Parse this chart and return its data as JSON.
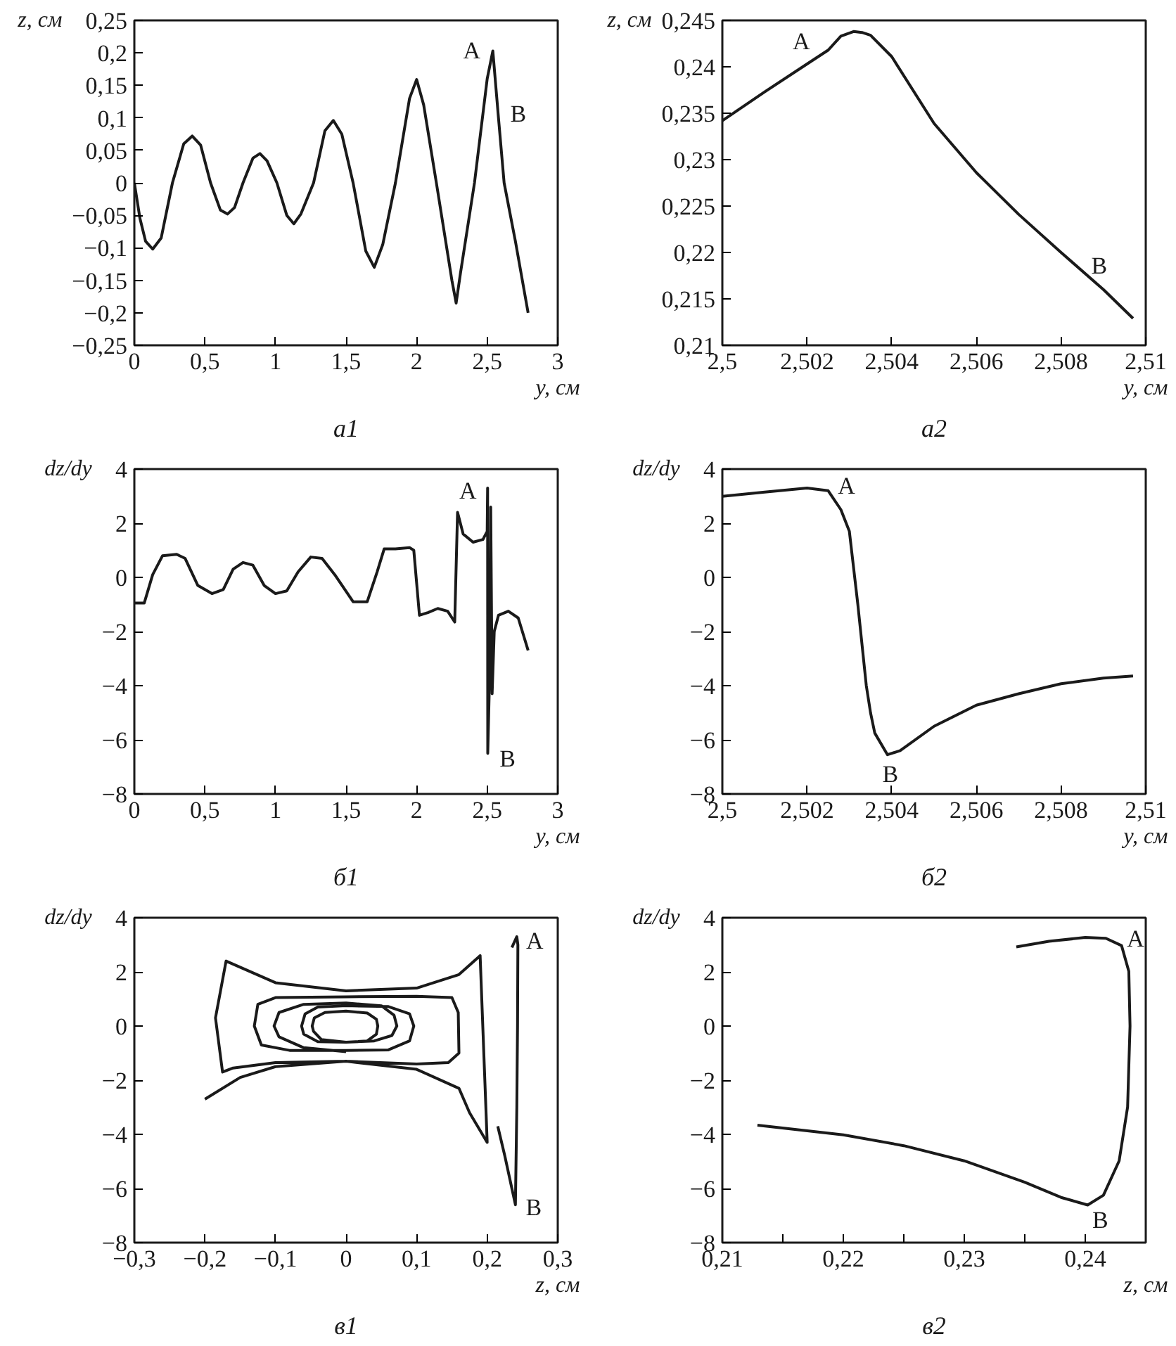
{
  "chart_data": [
    {
      "type": "line",
      "title": "а1",
      "xlabel": "y, см",
      "ylabel": "z, см",
      "xlim": [
        0,
        3
      ],
      "ylim": [
        -0.25,
        0.25
      ],
      "xticks": [
        0,
        {
          "value": 0.5,
          "label": "0,5"
        },
        1,
        {
          "value": 1.5,
          "label": "1,5"
        },
        2,
        {
          "value": 2.5,
          "label": "2,5"
        },
        3
      ],
      "yticks": [
        {
          "value": -0.25,
          "label": "−0,25"
        },
        {
          "value": -0.2,
          "label": "−0,2"
        },
        {
          "value": -0.15,
          "label": "−0,15"
        },
        {
          "value": -0.1,
          "label": "−0,1"
        },
        {
          "value": -0.05,
          "label": "−0,05"
        },
        0,
        {
          "value": 0.05,
          "label": "0,05"
        },
        {
          "value": 0.1,
          "label": "0,1"
        },
        {
          "value": 0.15,
          "label": "0,15"
        },
        {
          "value": 0.2,
          "label": "0,2"
        },
        {
          "value": 0.25,
          "label": "0,25"
        }
      ],
      "series": [
        {
          "color": "#1a1a1a",
          "x": [
            0,
            0.04,
            0.08,
            0.13,
            0.19,
            0.27,
            0.35,
            0.41,
            0.47,
            0.54,
            0.61,
            0.66,
            0.71,
            0.77,
            0.84,
            0.89,
            0.94,
            1.01,
            1.08,
            1.13,
            1.18,
            1.27,
            1.35,
            1.41,
            1.47,
            1.55,
            1.64,
            1.7,
            1.76,
            1.85,
            1.95,
            2.0,
            2.05,
            2.14,
            2.25,
            2.28,
            2.31,
            2.41,
            2.5,
            2.54,
            2.58,
            2.62,
            2.7,
            2.79
          ],
          "values": [
            0,
            -0.055,
            -0.09,
            -0.102,
            -0.085,
            0,
            0.06,
            0.072,
            0.058,
            0,
            -0.042,
            -0.048,
            -0.038,
            0,
            0.038,
            0.045,
            0.034,
            0,
            -0.05,
            -0.063,
            -0.048,
            0,
            0.08,
            0.096,
            0.075,
            0,
            -0.105,
            -0.13,
            -0.095,
            0,
            0.13,
            0.159,
            0.12,
            0,
            -0.15,
            -0.185,
            -0.14,
            0,
            0.16,
            0.203,
            0.1,
            0,
            -0.09,
            -0.2
          ]
        }
      ],
      "annotations": [
        {
          "text": "A",
          "x": 2.54,
          "y": 0.203
        },
        {
          "text": "B",
          "x": 2.58,
          "y": 0.1
        }
      ]
    },
    {
      "type": "line",
      "title": "а2",
      "xlabel": "y, см",
      "ylabel": "z, см",
      "xlim": [
        2.5,
        2.51
      ],
      "ylim": [
        0.21,
        0.245
      ],
      "xticks": [
        {
          "value": 2.5,
          "label": "2,5"
        },
        {
          "value": 2.502,
          "label": "2,502"
        },
        {
          "value": 2.504,
          "label": "2,504"
        },
        {
          "value": 2.506,
          "label": "2,506"
        },
        {
          "value": 2.508,
          "label": "2,508"
        },
        {
          "value": 2.51,
          "label": "2,51"
        }
      ],
      "yticks": [
        {
          "value": 0.21,
          "label": "0,21"
        },
        {
          "value": 0.215,
          "label": "0,215"
        },
        {
          "value": 0.22,
          "label": "0,22"
        },
        {
          "value": 0.225,
          "label": "0,225"
        },
        {
          "value": 0.23,
          "label": "0,23"
        },
        {
          "value": 0.235,
          "label": "0,235"
        },
        {
          "value": 0.24,
          "label": "0,24"
        },
        {
          "value": 0.245,
          "label": "0,245"
        }
      ],
      "series": [
        {
          "color": "#1a1a1a",
          "x": [
            2.5,
            2.501,
            2.502,
            2.5025,
            2.5028,
            2.5031,
            2.5033,
            2.5035,
            2.504,
            2.505,
            2.506,
            2.507,
            2.508,
            2.509,
            2.5097
          ],
          "values": [
            0.2342,
            0.2373,
            0.2403,
            0.2418,
            0.2433,
            0.2438,
            0.2437,
            0.2434,
            0.2411,
            0.2339,
            0.2286,
            0.2241,
            0.22,
            0.216,
            0.2129
          ]
        }
      ],
      "annotations": [
        {
          "text": "A",
          "x": 2.502,
          "y": 0.2403
        },
        {
          "text": "B",
          "x": 2.509,
          "y": 0.216
        }
      ]
    },
    {
      "type": "line",
      "title": "б1",
      "xlabel": "y, см",
      "ylabel": "dz/dy",
      "xlim": [
        0,
        3
      ],
      "ylim": [
        -8,
        4
      ],
      "xticks": [
        0,
        {
          "value": 0.5,
          "label": "0,5"
        },
        1,
        {
          "value": 1.5,
          "label": "1,5"
        },
        2,
        {
          "value": 2.5,
          "label": "2,5"
        },
        3
      ],
      "yticks": [
        {
          "value": -8,
          "label": "−8"
        },
        {
          "value": -6,
          "label": "−6"
        },
        {
          "value": -4,
          "label": "−4"
        },
        {
          "value": -2,
          "label": "−2"
        },
        0,
        2,
        4
      ],
      "series": [
        {
          "color": "#1a1a1a",
          "x": [
            0,
            0.07,
            0.13,
            0.2,
            0.3,
            0.36,
            0.45,
            0.55,
            0.63,
            0.7,
            0.77,
            0.84,
            0.92,
            1.0,
            1.08,
            1.16,
            1.25,
            1.33,
            1.42,
            1.55,
            1.65,
            1.72,
            1.77,
            1.85,
            1.95,
            1.98,
            2.02,
            2.08,
            2.15,
            2.22,
            2.27,
            2.29,
            2.33,
            2.4,
            2.47,
            2.5,
            2.503,
            2.504,
            2.52,
            2.525,
            2.535,
            2.55,
            2.58,
            2.65,
            2.72,
            2.79
          ],
          "values": [
            -0.95,
            -0.95,
            0.1,
            0.8,
            0.85,
            0.7,
            -0.3,
            -0.6,
            -0.45,
            0.3,
            0.55,
            0.45,
            -0.3,
            -0.6,
            -0.5,
            0.2,
            0.75,
            0.7,
            0.1,
            -0.9,
            -0.9,
            0.2,
            1.05,
            1.05,
            1.1,
            1.0,
            -1.4,
            -1.3,
            -1.15,
            -1.25,
            -1.65,
            2.4,
            1.6,
            1.3,
            1.4,
            1.7,
            3.3,
            -6.5,
            -3.0,
            2.6,
            -4.3,
            -2.0,
            -1.4,
            -1.25,
            -1.5,
            -2.7
          ]
        }
      ],
      "annotations": [
        {
          "text": "A",
          "x": 2.503,
          "y": 3.3
        },
        {
          "text": "B",
          "x": 2.504,
          "y": -6.5
        }
      ]
    },
    {
      "type": "line",
      "title": "б2",
      "xlabel": "y, см",
      "ylabel": "dz/dy",
      "xlim": [
        2.5,
        2.51
      ],
      "ylim": [
        -8,
        4
      ],
      "xticks": [
        {
          "value": 2.5,
          "label": "2,5"
        },
        {
          "value": 2.502,
          "label": "2,502"
        },
        {
          "value": 2.504,
          "label": "2,504"
        },
        {
          "value": 2.506,
          "label": "2,506"
        },
        {
          "value": 2.508,
          "label": "2,508"
        },
        {
          "value": 2.51,
          "label": "2,51"
        }
      ],
      "yticks": [
        {
          "value": -8,
          "label": "−8"
        },
        {
          "value": -6,
          "label": "−6"
        },
        {
          "value": -4,
          "label": "−4"
        },
        {
          "value": -2,
          "label": "−2"
        },
        0,
        2,
        4
      ],
      "series": [
        {
          "color": "#1a1a1a",
          "x": [
            2.5,
            2.501,
            2.502,
            2.5025,
            2.5028,
            2.503,
            2.5032,
            2.5034,
            2.5035,
            2.5036,
            2.5039,
            2.5042,
            2.505,
            2.506,
            2.507,
            2.508,
            2.509,
            2.5097
          ],
          "values": [
            2.99,
            3.15,
            3.3,
            3.2,
            2.5,
            1.7,
            -1.0,
            -4.0,
            -5.0,
            -5.75,
            -6.55,
            -6.4,
            -5.5,
            -4.72,
            -4.3,
            -3.93,
            -3.72,
            -3.64
          ]
        }
      ],
      "annotations": [
        {
          "text": "A",
          "x": 2.5028,
          "y": 2.5
        },
        {
          "text": "B",
          "x": 2.5039,
          "y": -6.55
        }
      ]
    },
    {
      "type": "line",
      "title": "в1",
      "xlabel": "z, см",
      "ylabel": "dz/dy",
      "xlim": [
        -0.3,
        0.3
      ],
      "ylim": [
        -8,
        4
      ],
      "xticks": [
        {
          "value": -0.3,
          "label": "−0,3"
        },
        {
          "value": -0.2,
          "label": "−0,2"
        },
        {
          "value": -0.1,
          "label": "−0,1"
        },
        0,
        {
          "value": 0.1,
          "label": "0,1"
        },
        {
          "value": 0.2,
          "label": "0,2"
        },
        {
          "value": 0.3,
          "label": "0,3"
        }
      ],
      "yticks": [
        {
          "value": -8,
          "label": "−8"
        },
        {
          "value": -6,
          "label": "−6"
        },
        {
          "value": -4,
          "label": "−4"
        },
        {
          "value": -2,
          "label": "−2"
        },
        0,
        2,
        4
      ],
      "series": [
        {
          "color": "#1a1a1a",
          "x": [
            0,
            -0.06,
            -0.095,
            -0.102,
            -0.095,
            -0.06,
            0,
            0.05,
            0.068,
            0.072,
            0.065,
            0.04,
            0,
            -0.035,
            -0.046,
            -0.048,
            -0.045,
            -0.03,
            0,
            0.03,
            0.043,
            0.045,
            0.043,
            0.03,
            0,
            -0.04,
            -0.06,
            -0.063,
            -0.058,
            -0.04,
            0,
            0.06,
            0.09,
            0.096,
            0.09,
            0.06,
            0,
            -0.08,
            -0.12,
            -0.13,
            -0.125,
            -0.1,
            0,
            0.1,
            0.15,
            0.159,
            0.16,
            0.145,
            0.1,
            0,
            -0.1,
            -0.16,
            -0.175,
            -0.185,
            -0.17,
            -0.1,
            0,
            0.1,
            0.16,
            0.19,
            0.2,
            0.175,
            0.16,
            0.1,
            0,
            -0.1,
            -0.15,
            -0.2
          ],
          "values": [
            -0.95,
            -0.8,
            -0.4,
            0,
            0.5,
            0.8,
            0.85,
            0.75,
            0.4,
            0,
            -0.35,
            -0.55,
            -0.6,
            -0.5,
            -0.2,
            0,
            0.3,
            0.5,
            0.55,
            0.48,
            0.25,
            0,
            -0.3,
            -0.55,
            -0.6,
            -0.58,
            -0.3,
            0,
            0.45,
            0.7,
            0.75,
            0.72,
            0.45,
            0,
            -0.55,
            -0.88,
            -0.9,
            -0.9,
            -0.7,
            0,
            0.8,
            1.05,
            1.08,
            1.1,
            1.05,
            0.5,
            -1.0,
            -1.35,
            -1.4,
            -1.3,
            -1.35,
            -1.55,
            -1.7,
            0.3,
            2.4,
            1.6,
            1.3,
            1.4,
            1.9,
            2.6,
            -4.3,
            -3.2,
            -2.3,
            -1.6,
            -1.3,
            -1.5,
            -1.9,
            -2.7
          ]
        },
        {
          "color": "#1a1a1a",
          "x": [
            0.215,
            0.225,
            0.235,
            0.24,
            0.242,
            0.243,
            0.2435,
            0.242,
            0.235
          ],
          "values": [
            -3.7,
            -4.8,
            -6.0,
            -6.6,
            -3.0,
            0,
            3.0,
            3.3,
            2.9
          ]
        }
      ],
      "annotations": [
        {
          "text": "A",
          "x": 0.2435,
          "y": 3.0
        },
        {
          "text": "B",
          "x": 0.24,
          "y": -6.6
        }
      ]
    },
    {
      "type": "line",
      "title": "в2",
      "xlabel": "z, см",
      "ylabel": "dz/dy",
      "xlim": [
        0.21,
        0.245
      ],
      "ylim": [
        -8,
        4
      ],
      "xticks": [
        {
          "value": 0.21,
          "label": "0,21"
        },
        {
          "value": 0.215,
          "label": null
        },
        {
          "value": 0.22,
          "label": "0,22"
        },
        {
          "value": 0.225,
          "label": null
        },
        {
          "value": 0.23,
          "label": "0,23"
        },
        {
          "value": 0.235,
          "label": null
        },
        {
          "value": 0.24,
          "label": "0,24"
        }
      ],
      "yticks": [
        {
          "value": -8,
          "label": "−8"
        },
        {
          "value": -6,
          "label": "−6"
        },
        {
          "value": -4,
          "label": "−4"
        },
        {
          "value": -2,
          "label": "−2"
        },
        0,
        2,
        4
      ],
      "series": [
        {
          "color": "#1a1a1a",
          "x": [
            0.2343,
            0.237,
            0.24,
            0.2417,
            0.243,
            0.2436,
            0.2437,
            0.2435,
            0.2428,
            0.2415,
            0.2402,
            0.238,
            0.235,
            0.23,
            0.225,
            0.22,
            0.2129
          ],
          "values": [
            2.92,
            3.13,
            3.27,
            3.24,
            2.97,
            2.02,
            0,
            -2.99,
            -4.98,
            -6.25,
            -6.61,
            -6.33,
            -5.77,
            -4.98,
            -4.42,
            -4.02,
            -3.66
          ]
        }
      ],
      "annotations": [
        {
          "text": "A",
          "x": 0.243,
          "y": 2.97
        },
        {
          "text": "B",
          "x": 0.2402,
          "y": -6.61
        }
      ]
    }
  ]
}
